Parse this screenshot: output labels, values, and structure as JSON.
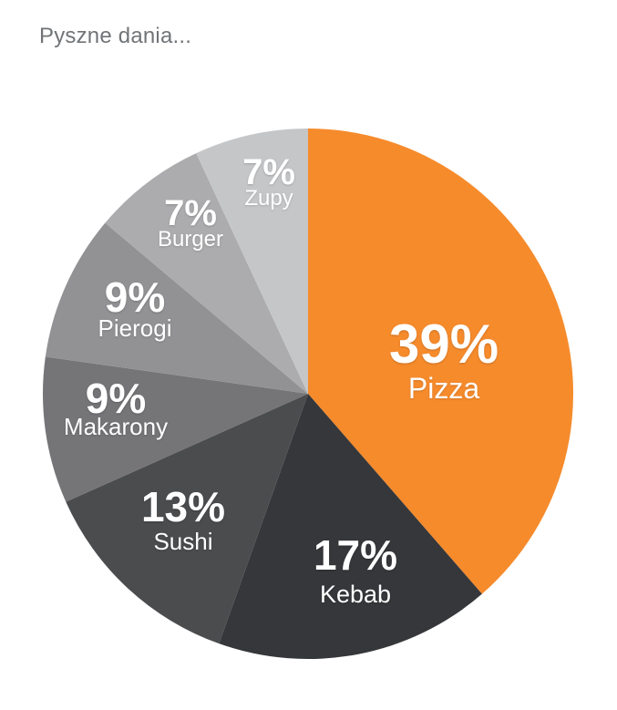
{
  "chart_data": {
    "type": "pie",
    "title": "Pyszne dania...",
    "title_color": "#717477",
    "background": "#ffffff",
    "categories": [
      "Pizza",
      "Kebab",
      "Sushi",
      "Makarony",
      "Pierogi",
      "Burger",
      "Zupy"
    ],
    "values": [
      39,
      17,
      13,
      9,
      9,
      7,
      7
    ],
    "value_labels": [
      "39%",
      "17%",
      "13%",
      "9%",
      "9%",
      "7%",
      "7%"
    ],
    "colors": [
      "#f68b2c",
      "#35373a",
      "#4b4c4e",
      "#757578",
      "#929295",
      "#acacae",
      "#c5c6c8"
    ],
    "label_text_color": "#ffffff",
    "start_angle_deg": 0,
    "direction": "clockwise",
    "labels_position": "inside",
    "legend": "none"
  }
}
